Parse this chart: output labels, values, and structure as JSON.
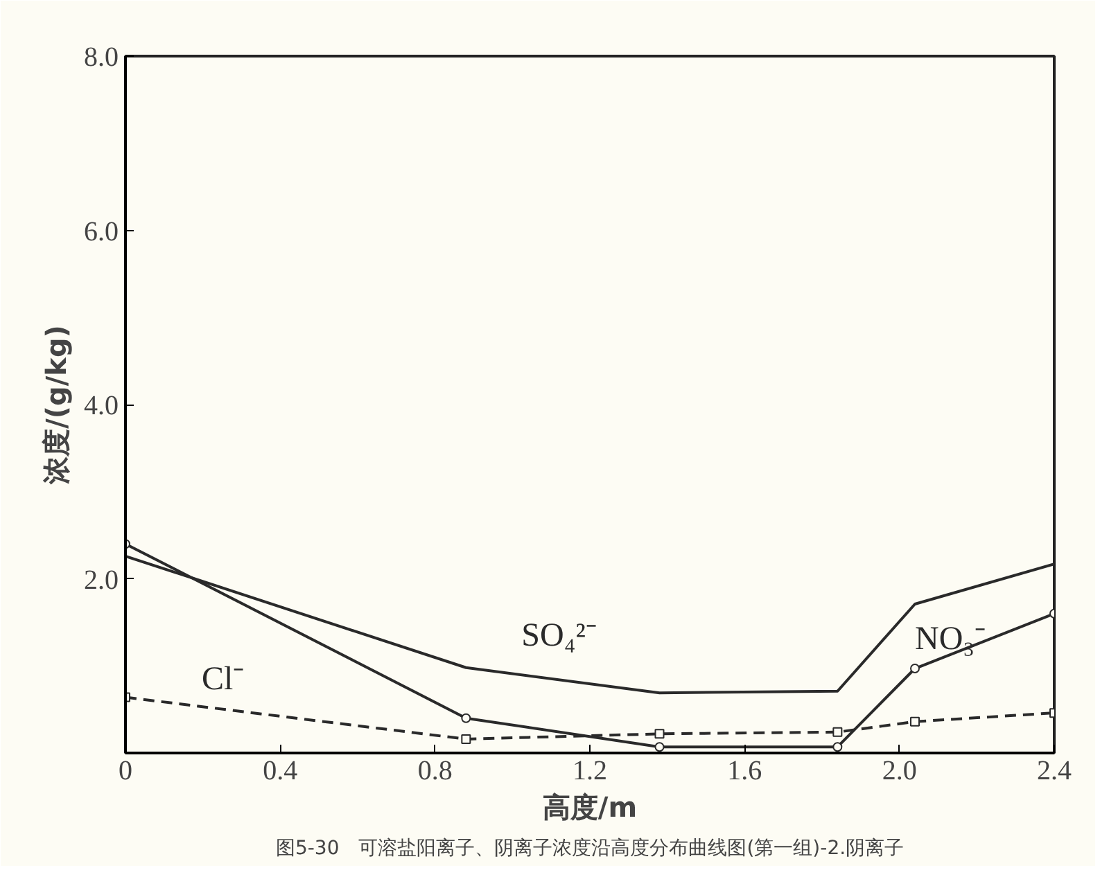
{
  "chart_data": {
    "type": "line",
    "xlabel": "高度/m",
    "ylabel": "浓度/(g/kg)",
    "annotations": [
      "图5-30　可溶盐阳离子、阴离子浓度沿高度分布曲线图(第一组)-2.阴离子"
    ],
    "x": [
      0,
      0.88,
      1.38,
      1.84,
      2.04,
      2.4
    ],
    "series": [
      {
        "name": "SO₄²⁻",
        "color": "#2a2a2a",
        "marker": "none",
        "line_style": "solid",
        "values": [
          2.26,
          0.98,
          0.69,
          0.71,
          1.71,
          2.17
        ]
      },
      {
        "name": "NO₃⁻",
        "color": "#2a2a2a",
        "marker": "circle",
        "line_style": "solid",
        "values": [
          2.4,
          0.4,
          0.07,
          0.07,
          0.97,
          1.6
        ]
      },
      {
        "name": "Cl⁻",
        "color": "#2a2a2a",
        "marker": "square",
        "line_style": "dashed",
        "values": [
          0.64,
          0.16,
          0.22,
          0.24,
          0.36,
          0.46
        ]
      }
    ],
    "xlim": [
      0,
      2.4
    ],
    "ylim": [
      0,
      8
    ],
    "xticks": [
      {
        "value": 0,
        "label": "0"
      },
      0.4,
      0.8,
      1.2,
      1.6,
      {
        "value": 2,
        "label": "2.0"
      },
      2.4
    ],
    "yticks": [
      {
        "value": 2,
        "label": "2.0"
      },
      {
        "value": 4,
        "label": "4.0"
      },
      {
        "value": 6,
        "label": "6.0"
      },
      {
        "value": 8,
        "label": "8.0"
      }
    ],
    "grid": false,
    "legend": false
  }
}
